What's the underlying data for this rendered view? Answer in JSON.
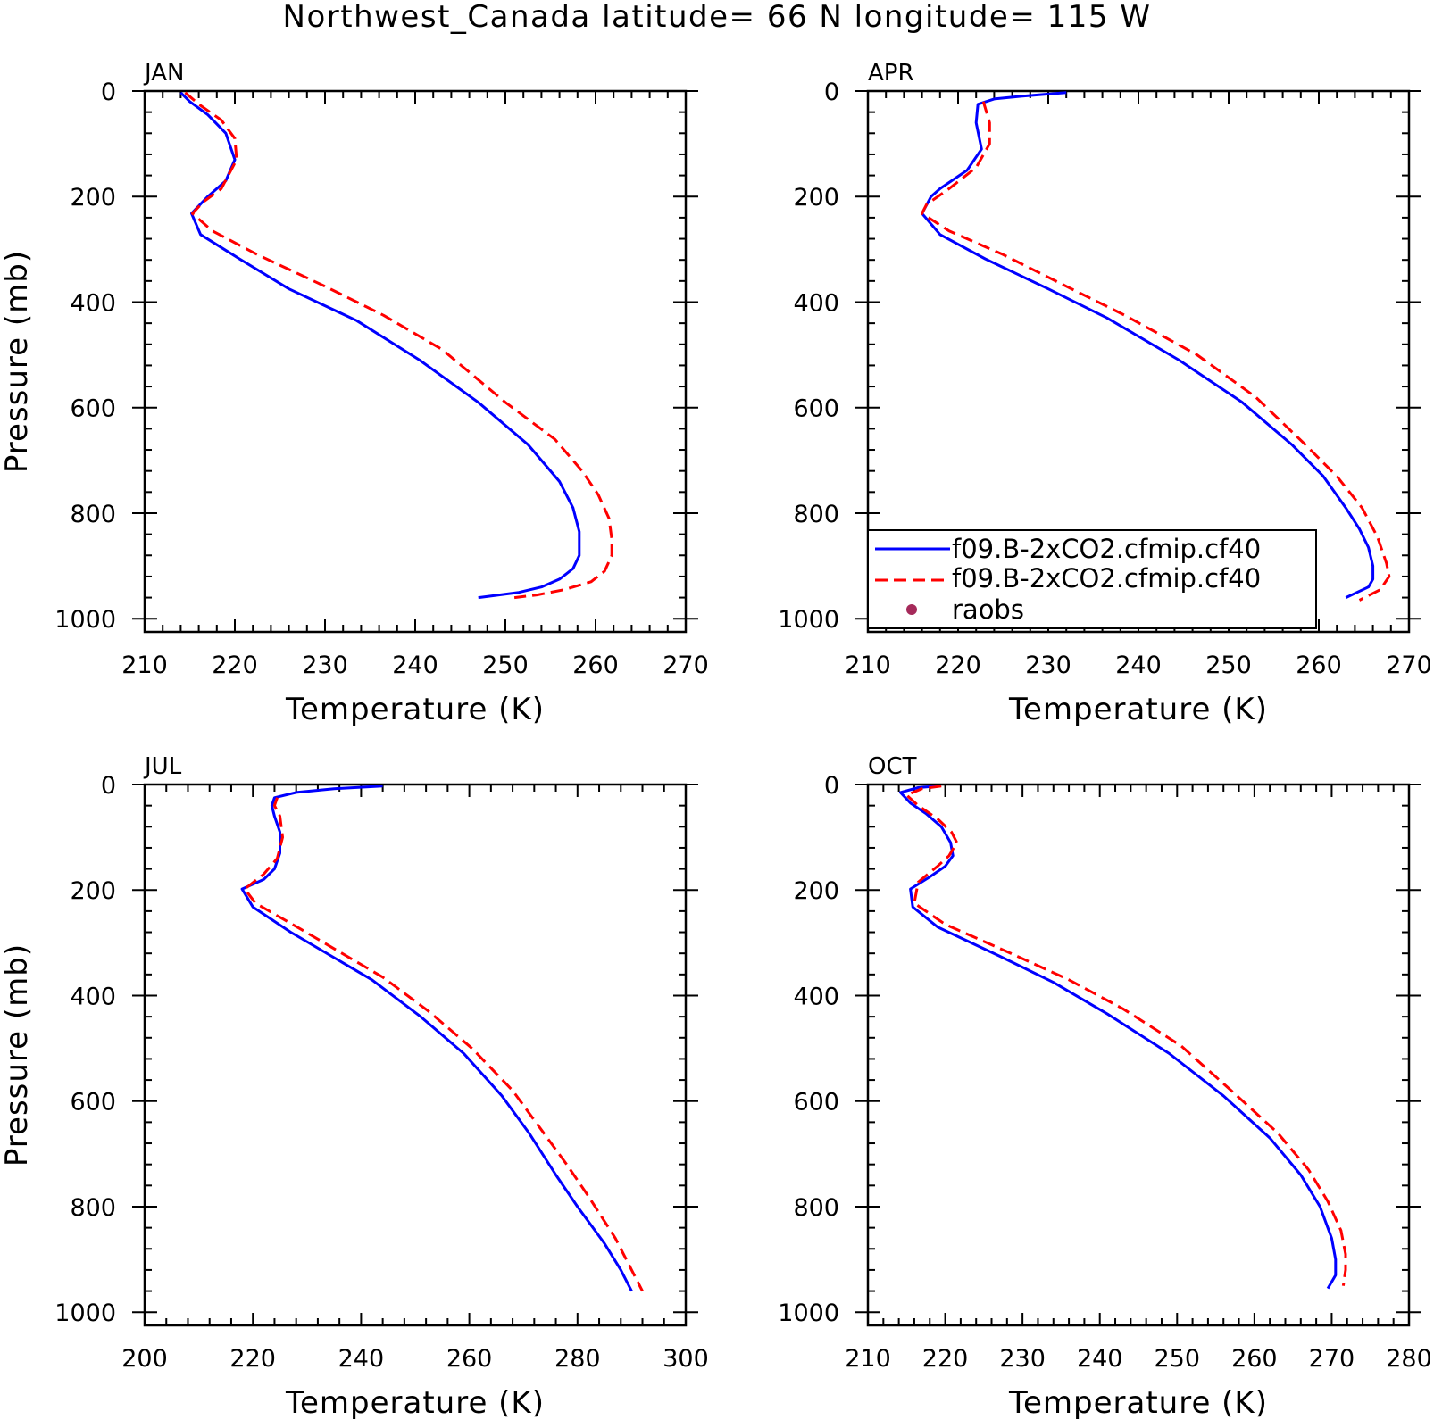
{
  "figure": {
    "title": "Northwest_Canada  latitude= 66 N longitude= 115 W"
  },
  "legend": {
    "entries": [
      {
        "label": "f09.B-2xCO2.cfmip.cf40",
        "color": "#0000ff",
        "style": "solid"
      },
      {
        "label": "f09.B-2xCO2.cfmip.cf40",
        "color": "#ff0000",
        "style": "dashed"
      },
      {
        "label": "raobs",
        "color": "#a52a5a",
        "style": "marker"
      }
    ]
  },
  "chart_data": [
    {
      "type": "line",
      "title": "JAN",
      "xlabel": "Temperature (K)",
      "ylabel": "Pressure (mb)",
      "xlim": [
        210,
        270
      ],
      "ylim": [
        1000,
        0
      ],
      "xticks": [
        "210",
        "220",
        "230",
        "240",
        "250",
        "260",
        "270"
      ],
      "yticks": [
        "0",
        "200",
        "400",
        "600",
        "800",
        "1000"
      ],
      "series": [
        {
          "color": "#0000ff",
          "style": "solid",
          "x": [
            214.0,
            215.0,
            217.0,
            219.0,
            220.0,
            219.0,
            217.0,
            215.2,
            216.2,
            220.5,
            226.0,
            233.5,
            240.5,
            247.0,
            252.5,
            256.0,
            257.5,
            258.2,
            258.2,
            257.5,
            256.0,
            254.0,
            251.5,
            247.0
          ],
          "y": [
            3,
            20,
            45,
            80,
            130,
            170,
            200,
            232,
            272,
            318,
            375,
            435,
            510,
            590,
            670,
            740,
            790,
            835,
            880,
            905,
            925,
            940,
            950,
            960
          ]
        },
        {
          "color": "#ff0000",
          "style": "dashed",
          "x": [
            214.5,
            216.0,
            218.5,
            220.0,
            220.2,
            218.5,
            216.5,
            215.3,
            217.5,
            222.5,
            230.0,
            236.5,
            243.0,
            250.0,
            255.5,
            258.5,
            260.3,
            261.5,
            261.8,
            261.8,
            261.0,
            259.5,
            256.5,
            253.5,
            251.0
          ],
          "y": [
            3,
            25,
            55,
            90,
            130,
            185,
            210,
            232,
            265,
            310,
            370,
            425,
            490,
            590,
            660,
            720,
            765,
            810,
            850,
            880,
            910,
            930,
            945,
            955,
            960
          ]
        }
      ]
    },
    {
      "type": "line",
      "title": "APR",
      "xlabel": "Temperature (K)",
      "ylabel": "",
      "xlim": [
        210,
        270
      ],
      "ylim": [
        1000,
        0
      ],
      "xticks": [
        "210",
        "220",
        "230",
        "240",
        "250",
        "260",
        "270"
      ],
      "yticks": [
        "0",
        "200",
        "400",
        "600",
        "800",
        "1000"
      ],
      "series": [
        {
          "color": "#0000ff",
          "style": "solid",
          "x": [
            232.0,
            227.0,
            224.0,
            222.2,
            222.0,
            222.6,
            221.0,
            218.0,
            217.0,
            216.0,
            218.0,
            223.0,
            230.0,
            236.5,
            244.5,
            251.5,
            257.0,
            260.5,
            263.0,
            264.5,
            265.5,
            266.0,
            266.0,
            265.5,
            263.0
          ],
          "y": [
            3,
            10,
            15,
            25,
            60,
            110,
            150,
            185,
            200,
            232,
            272,
            318,
            375,
            430,
            510,
            590,
            670,
            730,
            790,
            830,
            865,
            900,
            925,
            940,
            960
          ]
        },
        {
          "color": "#ff0000",
          "style": "dashed",
          "x": [
            222.8,
            223.5,
            223.5,
            222.0,
            219.0,
            216.5,
            216.0,
            219.0,
            225.0,
            232.0,
            238.5,
            246.5,
            253.0,
            258.5,
            262.0,
            264.8,
            266.5,
            267.5,
            267.8,
            266.8,
            264.5
          ],
          "y": [
            20,
            60,
            100,
            145,
            185,
            215,
            232,
            265,
            310,
            370,
            425,
            500,
            580,
            670,
            730,
            790,
            845,
            895,
            920,
            945,
            965
          ]
        }
      ]
    },
    {
      "type": "line",
      "title": "JUL",
      "xlabel": "Temperature (K)",
      "ylabel": "Pressure (mb)",
      "xlim": [
        200,
        300
      ],
      "ylim": [
        1000,
        0
      ],
      "xticks": [
        "200",
        "220",
        "240",
        "260",
        "280",
        "300"
      ],
      "yticks": [
        "0",
        "200",
        "400",
        "600",
        "800",
        "1000"
      ],
      "series": [
        {
          "color": "#0000ff",
          "style": "solid",
          "x": [
            244.0,
            235.0,
            228.0,
            224.0,
            223.5,
            224.0,
            225.0,
            225.0,
            224.0,
            222.0,
            218.0,
            220.0,
            227.0,
            242.0,
            251.0,
            259.0,
            266.0,
            271.0,
            276.0,
            280.0,
            285.0,
            288.0,
            290.0
          ],
          "y": [
            3,
            8,
            15,
            25,
            40,
            60,
            90,
            130,
            160,
            180,
            198,
            232,
            280,
            370,
            440,
            510,
            590,
            660,
            740,
            800,
            870,
            920,
            960
          ]
        },
        {
          "color": "#ff0000",
          "style": "dashed",
          "x": [
            224.5,
            224.0,
            225.0,
            225.5,
            224.5,
            222.0,
            218.5,
            220.5,
            229.0,
            244.0,
            252.5,
            260.5,
            268.0,
            273.0,
            278.0,
            282.0,
            287.0,
            290.0,
            292.0
          ],
          "y": [
            25,
            40,
            60,
            100,
            140,
            170,
            198,
            225,
            275,
            365,
            430,
            500,
            580,
            650,
            720,
            780,
            860,
            920,
            960
          ]
        }
      ]
    },
    {
      "type": "line",
      "title": "OCT",
      "xlabel": "Temperature (K)",
      "ylabel": "",
      "xlim": [
        210,
        280
      ],
      "ylim": [
        1000,
        0
      ],
      "xticks": [
        "210",
        "220",
        "230",
        "240",
        "250",
        "260",
        "270",
        "280"
      ],
      "yticks": [
        "0",
        "200",
        "400",
        "600",
        "800",
        "1000"
      ],
      "series": [
        {
          "color": "#0000ff",
          "style": "solid",
          "x": [
            219.0,
            216.5,
            214.2,
            215.5,
            217.5,
            219.5,
            220.7,
            221.0,
            220.0,
            218.0,
            215.5,
            215.8,
            219.0,
            227.0,
            234.0,
            241.0,
            249.0,
            256.0,
            262.0,
            266.0,
            268.5,
            270.0,
            270.5,
            270.5,
            269.5
          ],
          "y": [
            3,
            6,
            15,
            35,
            55,
            80,
            110,
            135,
            155,
            175,
            198,
            232,
            270,
            325,
            375,
            435,
            510,
            590,
            670,
            740,
            800,
            860,
            900,
            930,
            955
          ]
        },
        {
          "color": "#ff0000",
          "style": "dashed",
          "x": [
            219.5,
            217.0,
            215.0,
            216.5,
            219.0,
            220.8,
            221.5,
            220.5,
            219.0,
            216.5,
            216.0,
            220.0,
            228.5,
            236.0,
            243.0,
            250.5,
            257.0,
            263.0,
            267.0,
            269.5,
            271.2,
            271.8,
            271.8,
            271.5
          ],
          "y": [
            3,
            8,
            20,
            40,
            65,
            90,
            110,
            135,
            155,
            185,
            225,
            265,
            320,
            370,
            425,
            495,
            580,
            660,
            730,
            790,
            845,
            890,
            920,
            950
          ]
        }
      ]
    }
  ]
}
